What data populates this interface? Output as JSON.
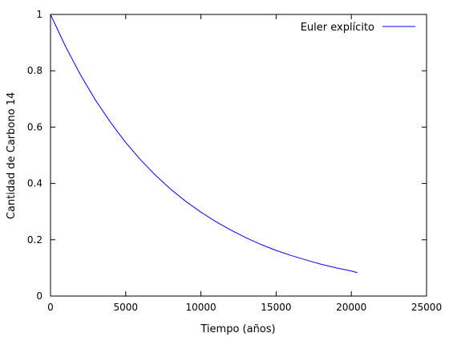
{
  "chart_data": {
    "type": "line",
    "title": "",
    "xlabel": "Tiempo (años)",
    "ylabel": "Cantidad de Carbono 14",
    "xlim": [
      0,
      25000
    ],
    "ylim": [
      0,
      1
    ],
    "xticks": [
      0,
      5000,
      10000,
      15000,
      20000,
      25000
    ],
    "yticks": [
      0,
      0.2,
      0.4,
      0.6,
      0.8,
      1
    ],
    "xtick_labels": [
      "0",
      "5000",
      "10000",
      "15000",
      "20000",
      "25000"
    ],
    "ytick_labels": [
      "0",
      "0.2",
      "0.4",
      "0.6",
      "0.8",
      "1"
    ],
    "grid": false,
    "legend_position": "top-right",
    "series": [
      {
        "name": "Euler explícito",
        "color": "#0000ff",
        "x": [
          0,
          1000,
          2000,
          3000,
          4000,
          5000,
          6000,
          7000,
          8000,
          9000,
          10000,
          11000,
          12000,
          13000,
          14000,
          15000,
          16000,
          17000,
          18000,
          19000,
          20000,
          20400
        ],
        "y": [
          1.0,
          0.886,
          0.785,
          0.695,
          0.616,
          0.545,
          0.483,
          0.428,
          0.379,
          0.336,
          0.298,
          0.264,
          0.234,
          0.207,
          0.183,
          0.162,
          0.144,
          0.128,
          0.113,
          0.1,
          0.089,
          0.083
        ]
      }
    ]
  }
}
